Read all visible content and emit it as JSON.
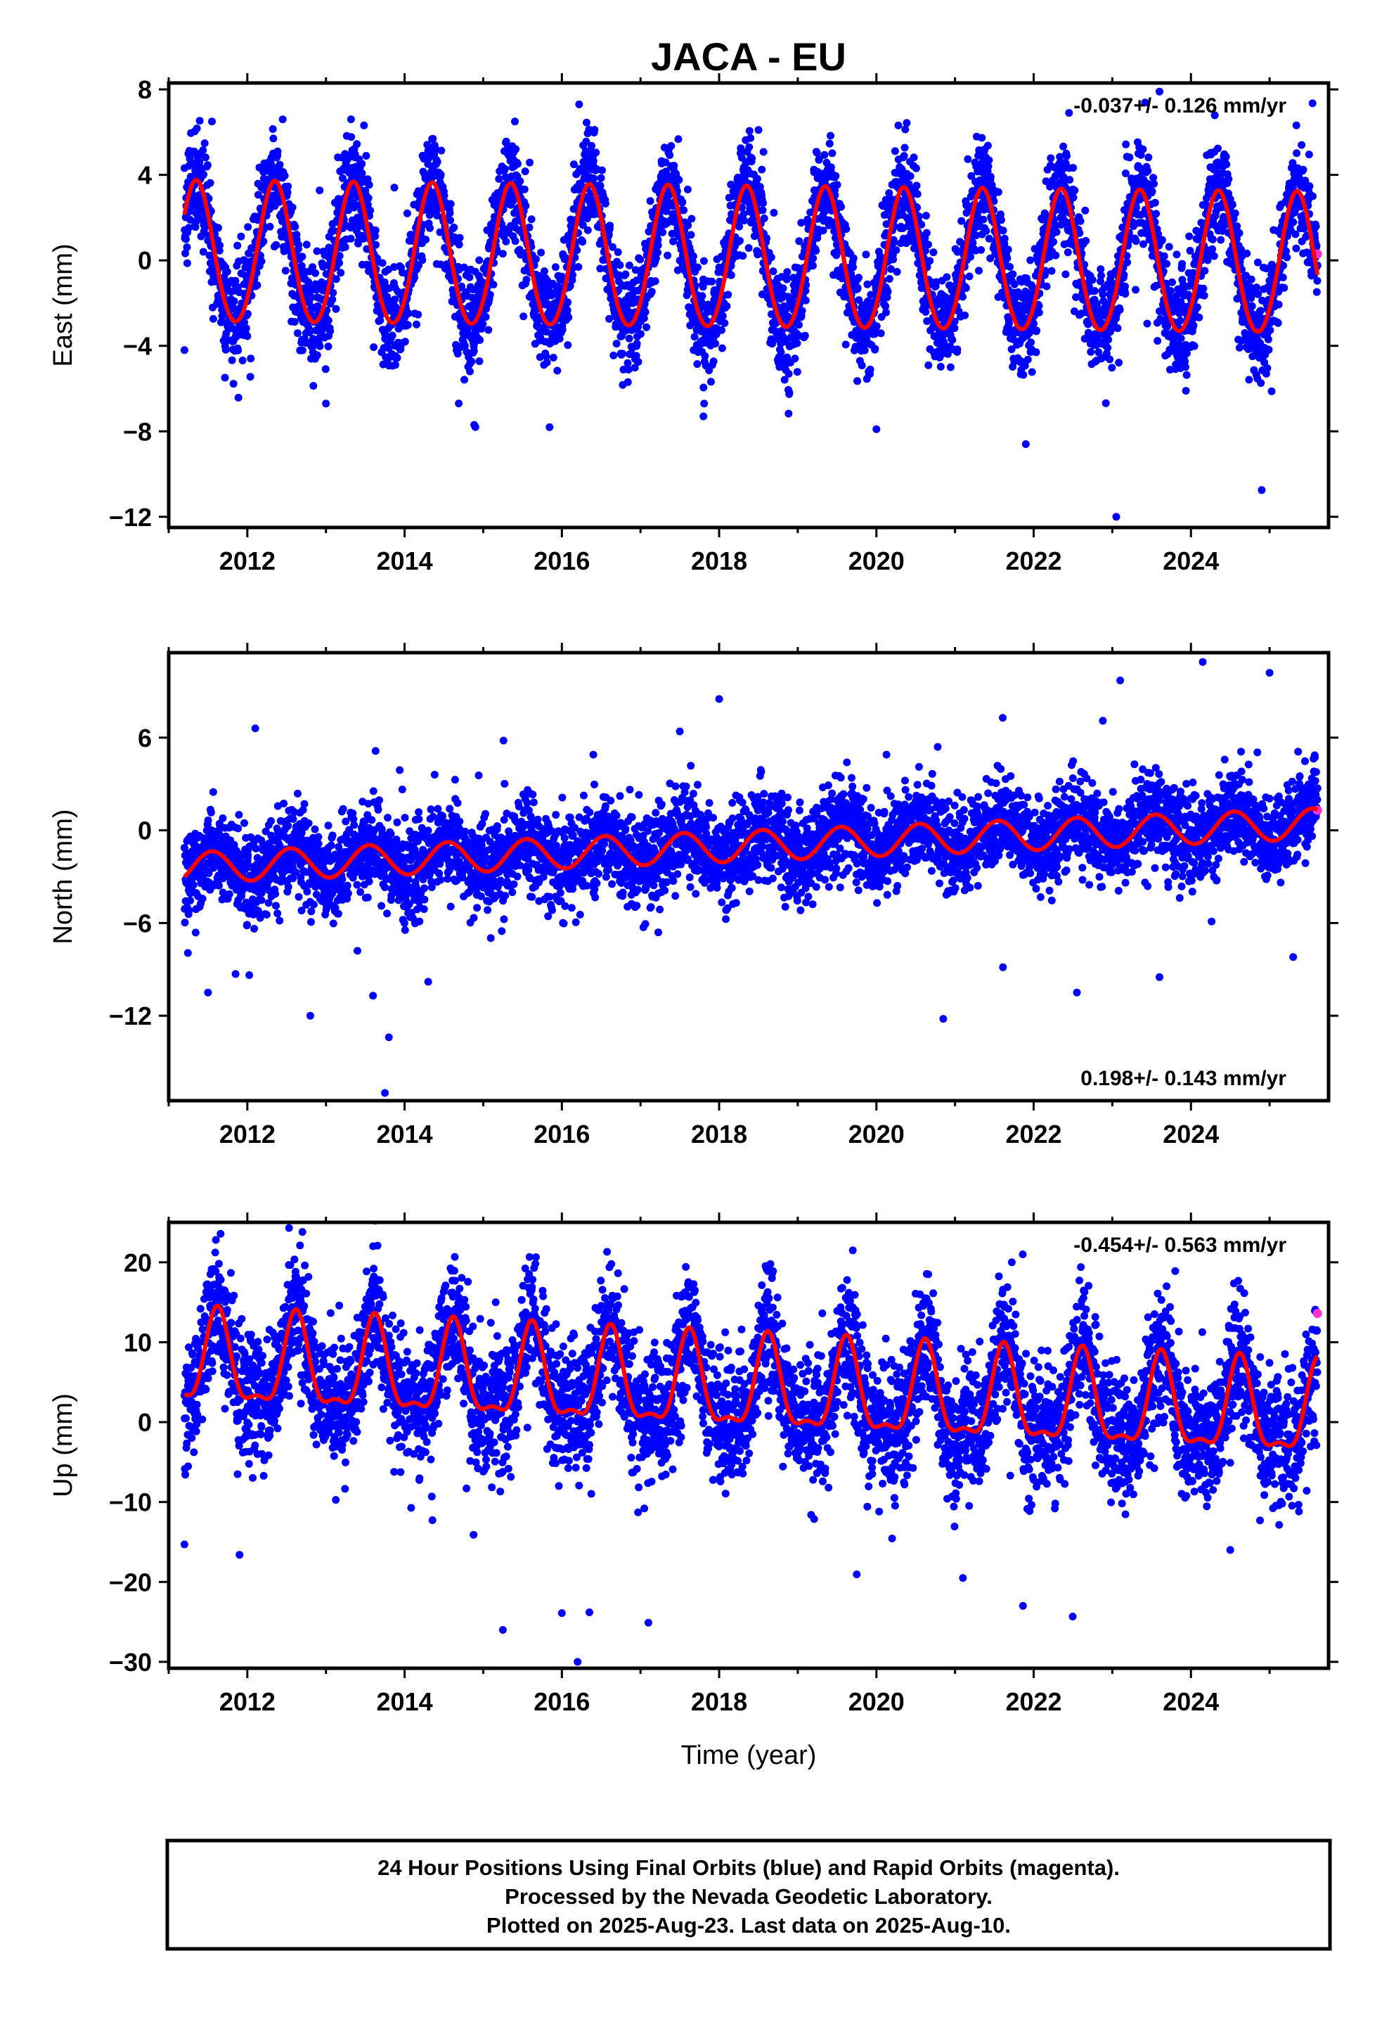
{
  "title": "JACA - EU",
  "xlabel": "Time (year)",
  "footer": {
    "line1": "24 Hour Positions Using Final Orbits (blue) and Rapid Orbits (magenta).",
    "line2": "Processed by the Nevada Geodetic Laboratory.",
    "line3": "Plotted on 2025-Aug-23. Last data on 2025-Aug-10."
  },
  "colors": {
    "final": "#0000ff",
    "rapid": "#ff33cc",
    "model": "#ff0000"
  },
  "chart_data": [
    {
      "type": "scatter",
      "component": "east",
      "ylabel": "East (mm)",
      "rate_label": "-0.037+/- 0.126 mm/yr",
      "rate_position": "top-right",
      "xlim": [
        2011.0,
        2025.75
      ],
      "ylim": [
        -12.5,
        8.3
      ],
      "xticks": [
        2012,
        2014,
        2016,
        2018,
        2020,
        2022,
        2024
      ],
      "xtick_labels": [
        "2012",
        "2014",
        "2016",
        "2018",
        "2020",
        "2022",
        "2024"
      ],
      "yticks": [
        -12,
        -8,
        -4,
        0,
        4,
        8
      ],
      "ytick_labels": [
        "−12",
        "−8",
        "−4",
        "0",
        "4",
        "8"
      ],
      "x_start": 2011.2,
      "x_end": 2025.61,
      "model": {
        "offset": 0.0,
        "trend": -0.037,
        "annual_amp": 3.3,
        "annual_peak": 2011.35,
        "semiannual_amp": 0.2,
        "semiannual_peak": 2011.35
      },
      "scatter_sigma": 1.2,
      "outliers": [
        {
          "x": 2011.2,
          "y": -4.2
        },
        {
          "x": 2011.55,
          "y": 6.5
        },
        {
          "x": 2012.45,
          "y": 6.6
        },
        {
          "x": 2013.0,
          "y": -6.7
        },
        {
          "x": 2014.9,
          "y": -7.8
        },
        {
          "x": 2016.22,
          "y": 7.3
        },
        {
          "x": 2017.8,
          "y": -7.3
        },
        {
          "x": 2018.5,
          "y": 6.1
        },
        {
          "x": 2020.0,
          "y": -7.9
        },
        {
          "x": 2021.9,
          "y": -8.6
        },
        {
          "x": 2022.45,
          "y": 6.9
        },
        {
          "x": 2023.05,
          "y": -12.0
        },
        {
          "x": 2023.6,
          "y": 7.9
        }
      ],
      "rapid": [
        {
          "x": 2025.61,
          "y": 0.3
        }
      ]
    },
    {
      "type": "scatter",
      "component": "north",
      "ylabel": "North (mm)",
      "rate_label": "0.198+/- 0.143 mm/yr",
      "rate_position": "bottom-right",
      "xlim": [
        2011.0,
        2025.75
      ],
      "ylim": [
        -17.5,
        11.5
      ],
      "xticks": [
        2012,
        2014,
        2016,
        2018,
        2020,
        2022,
        2024
      ],
      "xtick_labels": [
        "2012",
        "2014",
        "2016",
        "2018",
        "2020",
        "2022",
        "2024"
      ],
      "yticks": [
        -12,
        -6,
        0,
        6
      ],
      "ytick_labels": [
        "−12",
        "−6",
        "0",
        "6"
      ],
      "x_start": 2011.2,
      "x_end": 2025.61,
      "model": {
        "offset": -1.0,
        "trend": 0.198,
        "annual_amp": 1.0,
        "annual_peak": 2011.55,
        "semiannual_amp": 0.0,
        "semiannual_peak": 2011.5
      },
      "scatter_sigma": 1.4,
      "outliers": [
        {
          "x": 2011.5,
          "y": -10.5
        },
        {
          "x": 2011.85,
          "y": -9.3
        },
        {
          "x": 2012.1,
          "y": 6.6
        },
        {
          "x": 2012.8,
          "y": -12.0
        },
        {
          "x": 2013.4,
          "y": -7.8
        },
        {
          "x": 2013.8,
          "y": -13.4
        },
        {
          "x": 2013.75,
          "y": -17.0
        },
        {
          "x": 2014.3,
          "y": -9.8
        },
        {
          "x": 2016.4,
          "y": 4.9
        },
        {
          "x": 2017.5,
          "y": 6.4
        },
        {
          "x": 2018.0,
          "y": 8.5
        },
        {
          "x": 2020.85,
          "y": -12.2
        },
        {
          "x": 2022.55,
          "y": -10.5
        },
        {
          "x": 2023.1,
          "y": 9.7
        },
        {
          "x": 2023.6,
          "y": -9.5
        },
        {
          "x": 2024.15,
          "y": 10.9
        },
        {
          "x": 2025.0,
          "y": 10.2
        },
        {
          "x": 2025.3,
          "y": -8.2
        }
      ],
      "rapid": [
        {
          "x": 2025.61,
          "y": 1.3
        }
      ]
    },
    {
      "type": "scatter",
      "component": "up",
      "ylabel": "Up (mm)",
      "rate_label": "-0.454+/- 0.563 mm/yr",
      "rate_position": "top-right",
      "xlim": [
        2011.0,
        2025.75
      ],
      "ylim": [
        -30.8,
        25.0
      ],
      "xticks": [
        2012,
        2014,
        2016,
        2018,
        2020,
        2022,
        2024
      ],
      "xtick_labels": [
        "2012",
        "2014",
        "2016",
        "2018",
        "2020",
        "2022",
        "2024"
      ],
      "yticks": [
        -30,
        -20,
        -10,
        0,
        10,
        20
      ],
      "ytick_labels": [
        "−30",
        "−20",
        "−10",
        "0",
        "10",
        "20"
      ],
      "x_start": 2011.2,
      "x_end": 2025.61,
      "model": {
        "offset": 4.0,
        "trend": -0.454,
        "annual_amp": 5.5,
        "annual_peak": 2011.62,
        "semiannual_amp": 2.0,
        "semiannual_peak": 2011.62
      },
      "scatter_sigma": 4.0,
      "outliers": [
        {
          "x": 2011.2,
          "y": -15.3
        },
        {
          "x": 2011.6,
          "y": 22.8
        },
        {
          "x": 2011.9,
          "y": -16.6
        },
        {
          "x": 2012.7,
          "y": 23.8
        },
        {
          "x": 2015.25,
          "y": -26.0
        },
        {
          "x": 2016.0,
          "y": -23.9
        },
        {
          "x": 2016.2,
          "y": -30.0
        },
        {
          "x": 2016.35,
          "y": -23.8
        },
        {
          "x": 2017.1,
          "y": -25.1
        },
        {
          "x": 2019.7,
          "y": 21.5
        },
        {
          "x": 2021.1,
          "y": -19.5
        },
        {
          "x": 2022.6,
          "y": 19.4
        },
        {
          "x": 2023.8,
          "y": 18.9
        },
        {
          "x": 2024.5,
          "y": -16.0
        }
      ],
      "rapid": [
        {
          "x": 2025.61,
          "y": 13.6
        }
      ]
    }
  ]
}
